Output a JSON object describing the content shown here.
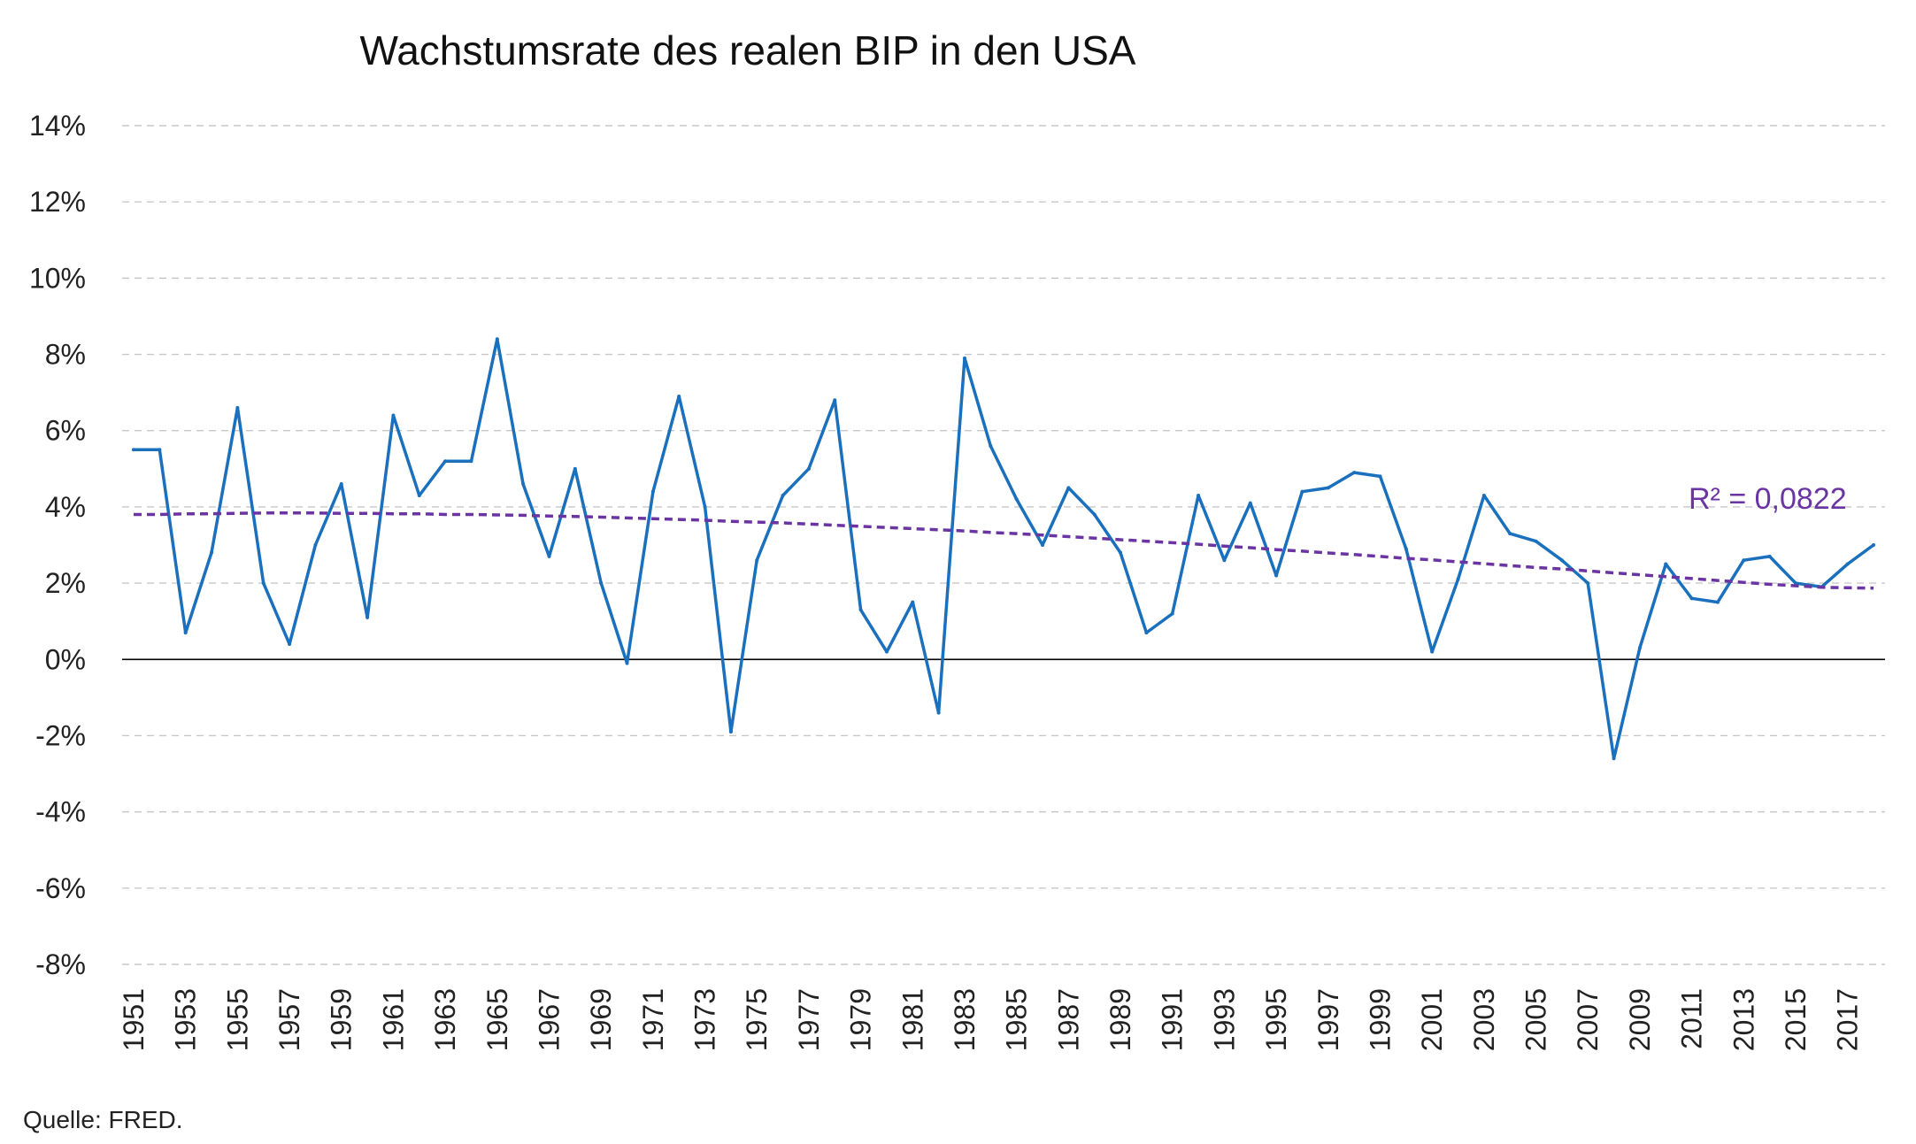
{
  "source": "Quelle: FRED.",
  "colors": {
    "series": "#1a70bd",
    "trend": "#6a35a2",
    "grid": "#c8c8c8",
    "zero": "#000000"
  },
  "chart_data": {
    "type": "line",
    "title": "Wachstumsrate des realen BIP in den USA",
    "xlabel": "",
    "ylabel": "",
    "ylim": [
      -8,
      14
    ],
    "y_ticks": [
      14,
      12,
      10,
      8,
      6,
      4,
      2,
      0,
      -2,
      -4,
      -6,
      -8
    ],
    "y_tick_labels": [
      "14%",
      "12%",
      "10%",
      "8%",
      "6%",
      "4%",
      "2%",
      "0%",
      "-2%",
      "-4%",
      "-6%",
      "-8%"
    ],
    "x_tick_labels": [
      "1951",
      "1953",
      "1955",
      "1957",
      "1959",
      "1961",
      "1963",
      "1965",
      "1967",
      "1969",
      "1971",
      "1973",
      "1975",
      "1977",
      "1979",
      "1981",
      "1983",
      "1985",
      "1987",
      "1989",
      "1991",
      "1993",
      "1995",
      "1997",
      "1999",
      "2001",
      "2003",
      "2005",
      "2007",
      "2009",
      "2011",
      "2013",
      "2015",
      "2017"
    ],
    "grid": true,
    "legend": "none",
    "x": [
      1951,
      1952,
      1953,
      1954,
      1955,
      1956,
      1957,
      1958,
      1959,
      1960,
      1961,
      1962,
      1963,
      1964,
      1965,
      1966,
      1967,
      1968,
      1969,
      1970,
      1971,
      1972,
      1973,
      1974,
      1975,
      1976,
      1977,
      1978,
      1979,
      1980,
      1981,
      1982,
      1983,
      1984,
      1985,
      1986,
      1987,
      1988,
      1989,
      1990,
      1991,
      1992,
      1993,
      1994,
      1995,
      1996,
      1997,
      1998,
      1999,
      2000,
      2001,
      2002,
      2003,
      2004,
      2005,
      2006,
      2007,
      2008,
      2009,
      2010,
      2011,
      2012,
      2013,
      2014,
      2015,
      2016,
      2017,
      2018
    ],
    "series": [
      {
        "values": [
          5.5,
          5.5,
          0.7,
          2.8,
          6.6,
          2.0,
          0.4,
          3.0,
          4.6,
          1.1,
          6.4,
          4.3,
          5.2,
          5.2,
          8.4,
          4.6,
          2.7,
          5.0,
          2.0,
          -0.1,
          4.4,
          6.9,
          4.0,
          -1.9,
          2.6,
          4.3,
          5.0,
          6.8,
          1.3,
          0.2,
          1.5,
          -1.4,
          7.9,
          5.6,
          4.2,
          3.0,
          4.5,
          3.8,
          2.8,
          0.7,
          1.2,
          4.3,
          2.6,
          4.1,
          2.2,
          4.4,
          4.5,
          4.9,
          4.8,
          2.9,
          0.2,
          2.1,
          4.3,
          3.3,
          3.1,
          2.6,
          2.0,
          -2.6,
          0.3,
          2.5,
          1.6,
          1.5,
          2.6,
          2.7,
          2.0,
          1.9,
          2.5,
          3.0
        ]
      },
      {
        "values": [
          3.8,
          3.8,
          3.82,
          3.82,
          3.83,
          3.84,
          3.84,
          3.84,
          3.83,
          3.83,
          3.82,
          3.82,
          3.8,
          3.8,
          3.79,
          3.78,
          3.76,
          3.75,
          3.73,
          3.71,
          3.69,
          3.67,
          3.65,
          3.62,
          3.6,
          3.58,
          3.55,
          3.52,
          3.49,
          3.46,
          3.43,
          3.4,
          3.37,
          3.33,
          3.3,
          3.26,
          3.22,
          3.18,
          3.14,
          3.1,
          3.06,
          3.02,
          2.97,
          2.93,
          2.88,
          2.84,
          2.79,
          2.75,
          2.7,
          2.65,
          2.61,
          2.56,
          2.51,
          2.46,
          2.41,
          2.37,
          2.32,
          2.27,
          2.22,
          2.17,
          2.12,
          2.07,
          2.02,
          1.97,
          1.93,
          1.89,
          1.88,
          1.87
        ],
        "label": "R² = 0,0822"
      }
    ]
  }
}
